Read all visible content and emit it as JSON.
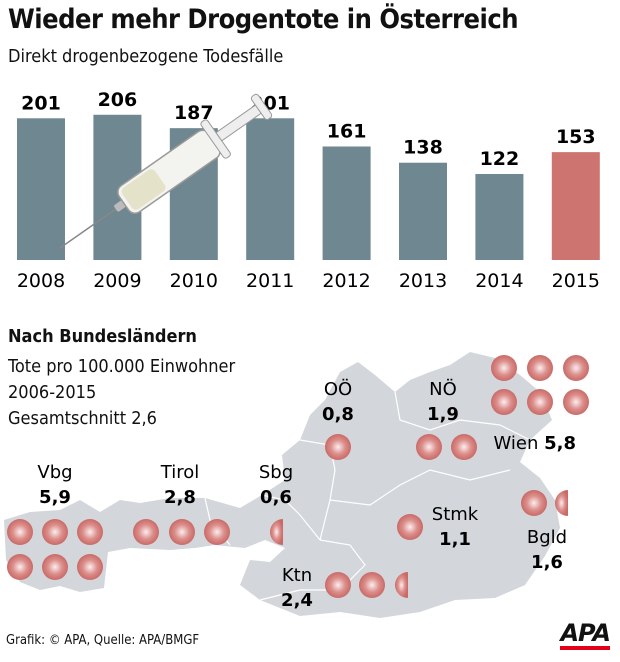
{
  "title": "Wieder mehr Drogentote in Österreich",
  "subtitle": "Direkt drogenbezogene Todesfälle",
  "chart_data": [
    {
      "type": "bar",
      "categories": [
        "2008",
        "2009",
        "2010",
        "2011",
        "2012",
        "2013",
        "2014",
        "2015"
      ],
      "values": [
        201,
        206,
        187,
        201,
        161,
        138,
        122,
        153
      ],
      "title": "Direkt drogenbezogene Todesfälle",
      "highlight": "2015",
      "colors": {
        "bar": "#6e8791",
        "highlight": "#cd7370"
      }
    },
    {
      "type": "pictogram-map",
      "title": "Nach Bundesländern",
      "unit_note": "Tote pro 100.000 Einwohner",
      "period": "2006-2015",
      "average_label": "Gesamtschnitt 2,6",
      "regions": [
        {
          "name": "Vbg",
          "value": "5,9"
        },
        {
          "name": "Tirol",
          "value": "2,8"
        },
        {
          "name": "Sbg",
          "value": "0,6"
        },
        {
          "name": "OÖ",
          "value": "0,8"
        },
        {
          "name": "NÖ",
          "value": "1,9"
        },
        {
          "name": "Wien",
          "value": "5,8"
        },
        {
          "name": "Stmk",
          "value": "1,1"
        },
        {
          "name": "Bgld",
          "value": "1,6"
        },
        {
          "name": "Ktn",
          "value": "2,4"
        }
      ],
      "colors": {
        "map": "#d3d6da",
        "dot": "#c96a67"
      }
    }
  ],
  "source": "Grafik: © APA, Quelle: APA/BMGF",
  "logo": "APA"
}
